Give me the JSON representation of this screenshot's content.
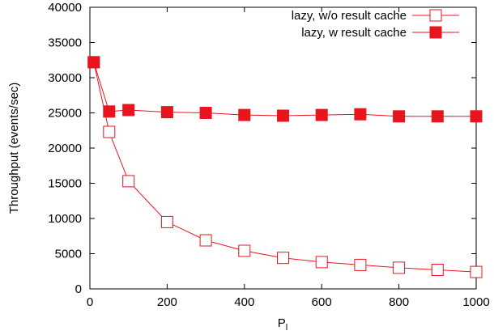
{
  "chart_data": {
    "type": "line",
    "xlabel": "P",
    "xlabel_subscript": "l",
    "ylabel": "Throughput (events/sec)",
    "xlim": [
      0,
      1000
    ],
    "ylim": [
      0,
      40000
    ],
    "xticks": [
      0,
      200,
      400,
      600,
      800,
      1000
    ],
    "yticks": [
      0,
      5000,
      10000,
      15000,
      20000,
      25000,
      30000,
      35000,
      40000
    ],
    "grid": false,
    "legend_position": "top-right",
    "colors": {
      "series": "#e8141e",
      "axis": "#000000"
    },
    "series": [
      {
        "name": "lazy, w/o result cache",
        "marker": "open-square",
        "x": [
          10,
          50,
          100,
          200,
          300,
          400,
          500,
          600,
          700,
          800,
          900,
          1000
        ],
        "y": [
          32200,
          22300,
          15300,
          9500,
          6900,
          5400,
          4400,
          3800,
          3400,
          3000,
          2700,
          2400
        ]
      },
      {
        "name": "lazy, w result cache",
        "marker": "filled-square",
        "x": [
          10,
          50,
          100,
          200,
          300,
          400,
          500,
          600,
          700,
          800,
          900,
          1000
        ],
        "y": [
          32200,
          25200,
          25400,
          25100,
          25000,
          24700,
          24600,
          24700,
          24800,
          24500,
          24500,
          24500
        ]
      }
    ]
  }
}
